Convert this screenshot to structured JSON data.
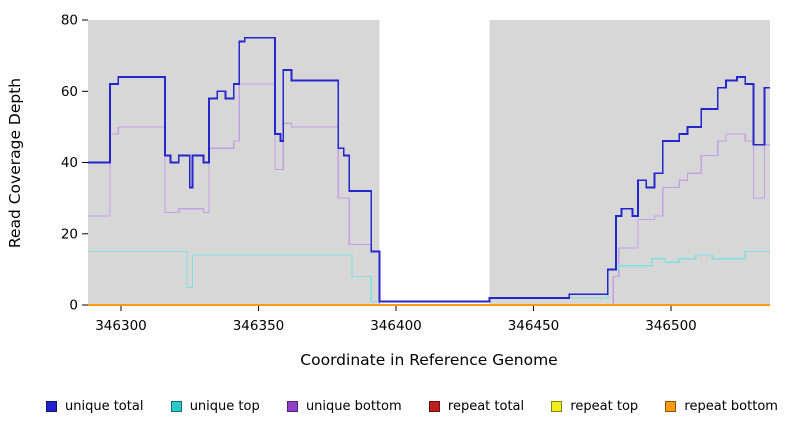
{
  "chart_data": {
    "type": "line",
    "step": true,
    "title": "",
    "xlabel": "Coordinate in Reference Genome",
    "ylabel": "Read Coverage Depth",
    "xlim": [
      346288,
      346536
    ],
    "ylim": [
      0,
      80
    ],
    "x_ticks": [
      346300,
      346350,
      346400,
      346450,
      346500
    ],
    "y_ticks": [
      0,
      20,
      40,
      60,
      80
    ],
    "grid": false,
    "legend_position": "bottom",
    "background": {
      "plot_bg": "#ffffff",
      "covered_color": "#d7d7d7",
      "covered_regions": [
        [
          346288,
          346394
        ],
        [
          346434,
          346536
        ]
      ]
    },
    "series": [
      {
        "name": "repeat total",
        "color": "#c01d1d",
        "width": 1,
        "points": [
          [
            346288,
            0
          ]
        ]
      },
      {
        "name": "repeat top",
        "color": "#f0ee18",
        "width": 1,
        "points": [
          [
            346288,
            0
          ]
        ]
      },
      {
        "name": "unique bottom",
        "color": "#c3a0e4",
        "width": 1.2,
        "points": [
          [
            346288,
            25
          ],
          [
            346296,
            48
          ],
          [
            346299,
            50
          ],
          [
            346316,
            26
          ],
          [
            346321,
            27
          ],
          [
            346330,
            26
          ],
          [
            346332,
            44
          ],
          [
            346341,
            46
          ],
          [
            346343,
            62
          ],
          [
            346356,
            38
          ],
          [
            346359,
            51
          ],
          [
            346362,
            50
          ],
          [
            346379,
            30
          ],
          [
            346383,
            17
          ],
          [
            346391,
            15
          ],
          [
            346394,
            0
          ],
          [
            346479,
            8
          ],
          [
            346481,
            16
          ],
          [
            346488,
            24
          ],
          [
            346494,
            25
          ],
          [
            346497,
            33
          ],
          [
            346503,
            35
          ],
          [
            346506,
            37
          ],
          [
            346511,
            42
          ],
          [
            346517,
            46
          ],
          [
            346520,
            48
          ],
          [
            346527,
            46
          ],
          [
            346530,
            30
          ],
          [
            346534,
            45
          ]
        ]
      },
      {
        "name": "repeat bottom",
        "color": "#ff9a12",
        "width": 1.6,
        "points": [
          [
            346288,
            0
          ]
        ]
      },
      {
        "name": "unique top",
        "color": "#7fe2e2",
        "width": 1.2,
        "points": [
          [
            346288,
            15
          ],
          [
            346324,
            5
          ],
          [
            346326,
            14
          ],
          [
            346384,
            8
          ],
          [
            346391,
            1
          ],
          [
            346434,
            2
          ],
          [
            346477,
            10
          ],
          [
            346481,
            11
          ],
          [
            346493,
            13
          ],
          [
            346498,
            12
          ],
          [
            346503,
            13
          ],
          [
            346509,
            14
          ],
          [
            346515,
            13
          ],
          [
            346527,
            15
          ]
        ]
      },
      {
        "name": "unique total",
        "color": "#2626cd",
        "width": 1.8,
        "points": [
          [
            346288,
            40
          ],
          [
            346296,
            62
          ],
          [
            346299,
            64
          ],
          [
            346316,
            42
          ],
          [
            346318,
            40
          ],
          [
            346321,
            42
          ],
          [
            346325,
            33
          ],
          [
            346326,
            42
          ],
          [
            346330,
            40
          ],
          [
            346332,
            58
          ],
          [
            346335,
            60
          ],
          [
            346338,
            58
          ],
          [
            346341,
            62
          ],
          [
            346343,
            74
          ],
          [
            346345,
            75
          ],
          [
            346356,
            48
          ],
          [
            346358,
            46
          ],
          [
            346359,
            66
          ],
          [
            346362,
            63
          ],
          [
            346379,
            44
          ],
          [
            346381,
            42
          ],
          [
            346383,
            32
          ],
          [
            346391,
            15
          ],
          [
            346394,
            1
          ],
          [
            346434,
            2
          ],
          [
            346463,
            3
          ],
          [
            346477,
            10
          ],
          [
            346480,
            25
          ],
          [
            346482,
            27
          ],
          [
            346486,
            25
          ],
          [
            346488,
            35
          ],
          [
            346491,
            33
          ],
          [
            346494,
            37
          ],
          [
            346497,
            46
          ],
          [
            346503,
            48
          ],
          [
            346506,
            50
          ],
          [
            346511,
            55
          ],
          [
            346517,
            61
          ],
          [
            346520,
            63
          ],
          [
            346524,
            64
          ],
          [
            346527,
            62
          ],
          [
            346530,
            45
          ],
          [
            346534,
            61
          ]
        ]
      }
    ],
    "legend": [
      {
        "label": "unique total",
        "color": "#2222cc"
      },
      {
        "label": "unique top",
        "color": "#2bc9c9"
      },
      {
        "label": "unique bottom",
        "color": "#9040c8"
      },
      {
        "label": "repeat total",
        "color": "#c01d1d"
      },
      {
        "label": "repeat top",
        "color": "#f0ee18"
      },
      {
        "label": "repeat bottom",
        "color": "#ff9a12"
      }
    ]
  }
}
